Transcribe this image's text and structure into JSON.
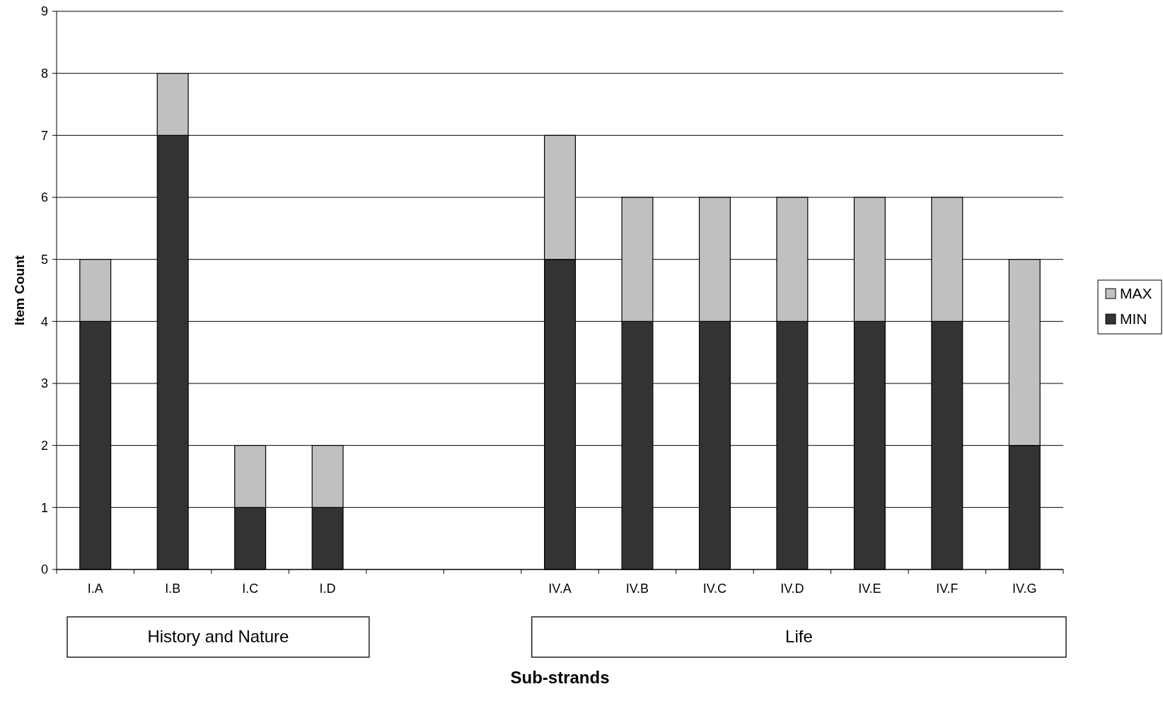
{
  "chart_data": {
    "type": "bar",
    "stacked": true,
    "xlabel": "Sub-strands",
    "ylabel": "Item Count",
    "categories": [
      "I.A",
      "I.B",
      "I.C",
      "I.D",
      null,
      null,
      "IV.A",
      "IV.B",
      "IV.C",
      "IV.D",
      "IV.E",
      "IV.F",
      "IV.G"
    ],
    "series": [
      {
        "name": "MIN",
        "color": "#333333",
        "values": [
          4,
          7,
          1,
          1,
          null,
          null,
          5,
          4,
          4,
          4,
          4,
          4,
          2
        ]
      },
      {
        "name": "MAX",
        "color": "#c0c0c0",
        "values": [
          1,
          1,
          1,
          1,
          null,
          null,
          2,
          2,
          2,
          2,
          2,
          2,
          3
        ]
      }
    ],
    "ylim": [
      0,
      9
    ],
    "yticks": [
      0,
      1,
      2,
      3,
      4,
      5,
      6,
      7,
      8,
      9
    ],
    "grid": "y",
    "legend": "right",
    "annotations": [
      "History and Nature",
      "Life"
    ]
  }
}
